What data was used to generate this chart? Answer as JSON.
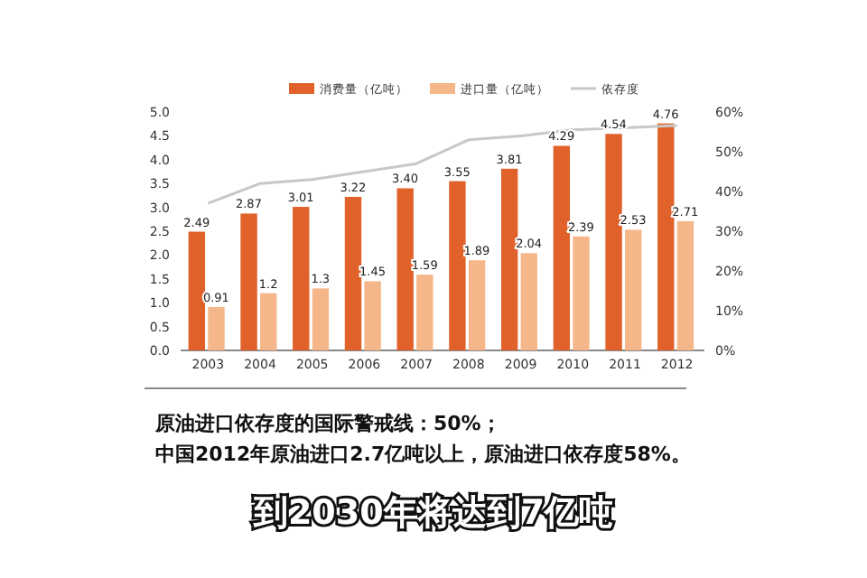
{
  "chart_data": {
    "type": "bar",
    "categories": [
      "2003",
      "2004",
      "2005",
      "2006",
      "2007",
      "2008",
      "2009",
      "2010",
      "2011",
      "2012"
    ],
    "series": [
      {
        "name": "消费量（亿吨）",
        "color": "#e0622a",
        "values": [
          2.49,
          2.87,
          3.01,
          3.22,
          3.4,
          3.55,
          3.81,
          4.29,
          4.54,
          4.76
        ],
        "value_labels": [
          "2.49",
          "2.87",
          "3.01",
          "3.22",
          "3.40",
          "3.55",
          "3.81",
          "4.29",
          "4.54",
          "4.76"
        ]
      },
      {
        "name": "进口量（亿吨）",
        "color": "#f5b78a",
        "values": [
          0.91,
          1.2,
          1.3,
          1.45,
          1.59,
          1.89,
          2.04,
          2.39,
          2.53,
          2.71
        ],
        "value_labels": [
          "0.91",
          "1.2",
          "1.3",
          "1.45",
          "1.59",
          "1.89",
          "2.04",
          "2.39",
          "2.53",
          "2.71"
        ]
      },
      {
        "name": "依存度",
        "type": "line",
        "axis": "y2",
        "color": "#c8c8c8",
        "values": [
          37,
          42,
          43,
          45,
          47,
          53,
          54,
          55.5,
          56,
          56.6
        ]
      }
    ],
    "ylim": [
      0,
      5
    ],
    "yticks": [
      {
        "value": 0,
        "label": "0.0"
      },
      {
        "value": 0.5,
        "label": "0.5"
      },
      {
        "value": 1,
        "label": "1.0"
      },
      {
        "value": 1.5,
        "label": "1.5"
      },
      {
        "value": 2,
        "label": "2.0"
      },
      {
        "value": 2.5,
        "label": "2.5"
      },
      {
        "value": 3,
        "label": "3.0"
      },
      {
        "value": 3.5,
        "label": "3.5"
      },
      {
        "value": 4,
        "label": "4.0"
      },
      {
        "value": 4.5,
        "label": "4.5"
      },
      {
        "value": 5,
        "label": "5.0"
      }
    ],
    "y2lim": [
      0,
      60
    ],
    "y2ticks": [
      {
        "value": 0,
        "label": "0%"
      },
      {
        "value": 10,
        "label": "10%"
      },
      {
        "value": 20,
        "label": "20%"
      },
      {
        "value": 30,
        "label": "30%"
      },
      {
        "value": 40,
        "label": "40%"
      },
      {
        "value": 50,
        "label": "50%"
      },
      {
        "value": 60,
        "label": "60%"
      }
    ],
    "legend": "top",
    "grid": false,
    "annotations": [
      "原油进口依存度的国际警戒线：50%；",
      "中国2012年原油进口2.7亿吨以上，原油进口依存度58%。",
      "到2030年将达到7亿吨"
    ]
  }
}
